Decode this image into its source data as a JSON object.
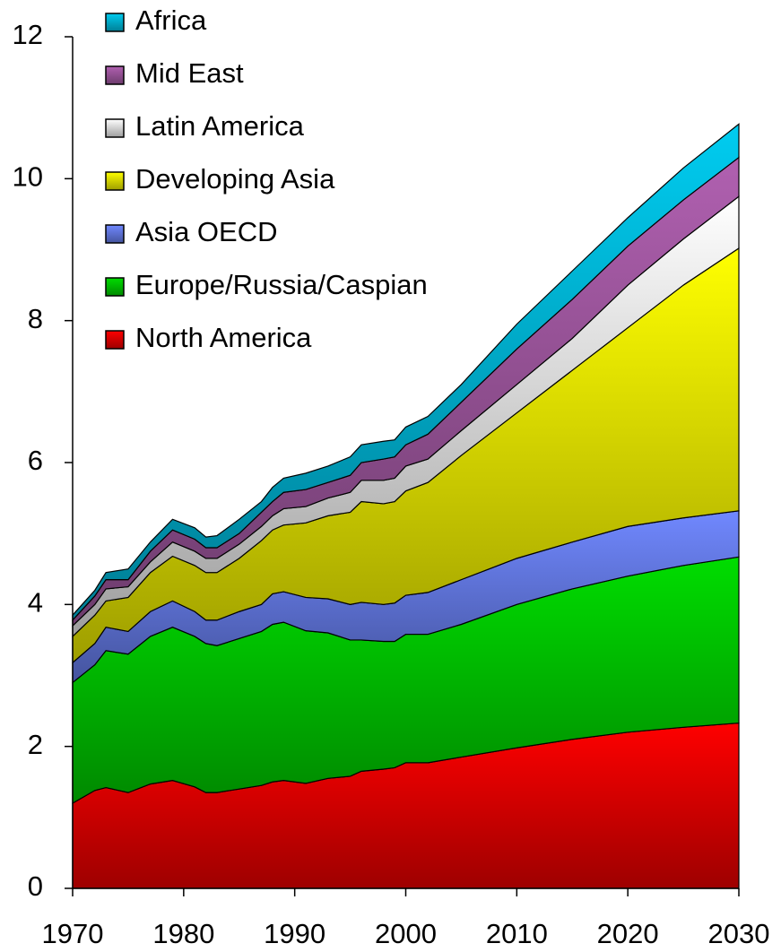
{
  "chart_data": {
    "type": "stacked-area",
    "x": [
      1970,
      1972,
      1973,
      1975,
      1977,
      1979,
      1981,
      1982,
      1983,
      1985,
      1987,
      1988,
      1989,
      1991,
      1993,
      1995,
      1996,
      1998,
      1999,
      2000,
      2002,
      2005,
      2010,
      2015,
      2020,
      2025,
      2030
    ],
    "series": [
      {
        "name": "North America",
        "color": "#ff0000",
        "values": [
          1.2,
          1.38,
          1.42,
          1.35,
          1.47,
          1.52,
          1.43,
          1.35,
          1.35,
          1.4,
          1.45,
          1.5,
          1.52,
          1.48,
          1.55,
          1.58,
          1.65,
          1.68,
          1.7,
          1.77,
          1.77,
          1.85,
          1.98,
          2.1,
          2.2,
          2.27,
          2.33
        ]
      },
      {
        "name": "Europe/Russia/Caspian",
        "color": "#00dd00",
        "values": [
          1.7,
          1.77,
          1.93,
          1.95,
          2.08,
          2.16,
          2.12,
          2.1,
          2.07,
          2.12,
          2.17,
          2.22,
          2.23,
          2.15,
          2.05,
          1.92,
          1.85,
          1.8,
          1.78,
          1.81,
          1.81,
          1.87,
          2.02,
          2.12,
          2.2,
          2.28,
          2.34
        ]
      },
      {
        "name": "Asia OECD",
        "color": "#7088ff",
        "values": [
          0.28,
          0.3,
          0.33,
          0.32,
          0.35,
          0.37,
          0.35,
          0.33,
          0.36,
          0.38,
          0.38,
          0.43,
          0.43,
          0.47,
          0.48,
          0.5,
          0.53,
          0.52,
          0.54,
          0.55,
          0.59,
          0.63,
          0.65,
          0.66,
          0.7,
          0.67,
          0.65
        ]
      },
      {
        "name": "Developing Asia",
        "color": "#ffff00",
        "values": [
          0.37,
          0.4,
          0.37,
          0.48,
          0.55,
          0.63,
          0.65,
          0.67,
          0.67,
          0.75,
          0.9,
          0.9,
          0.94,
          1.05,
          1.17,
          1.3,
          1.42,
          1.42,
          1.43,
          1.47,
          1.55,
          1.75,
          2.05,
          2.42,
          2.8,
          3.28,
          3.7
        ]
      },
      {
        "name": "Latin America",
        "color": "#ffffff",
        "values": [
          0.15,
          0.15,
          0.17,
          0.15,
          0.15,
          0.2,
          0.2,
          0.2,
          0.2,
          0.2,
          0.2,
          0.2,
          0.23,
          0.23,
          0.25,
          0.28,
          0.3,
          0.33,
          0.33,
          0.35,
          0.33,
          0.35,
          0.4,
          0.45,
          0.6,
          0.65,
          0.73
        ]
      },
      {
        "name": "Mid East",
        "color": "#b060b0",
        "values": [
          0.08,
          0.12,
          0.13,
          0.1,
          0.15,
          0.17,
          0.17,
          0.15,
          0.15,
          0.15,
          0.2,
          0.2,
          0.23,
          0.24,
          0.22,
          0.24,
          0.25,
          0.3,
          0.3,
          0.3,
          0.35,
          0.4,
          0.5,
          0.55,
          0.55,
          0.55,
          0.55
        ]
      },
      {
        "name": "Africa",
        "color": "#00ccf0",
        "values": [
          0.07,
          0.08,
          0.1,
          0.15,
          0.13,
          0.15,
          0.16,
          0.15,
          0.17,
          0.2,
          0.15,
          0.2,
          0.2,
          0.23,
          0.23,
          0.26,
          0.25,
          0.25,
          0.24,
          0.25,
          0.25,
          0.25,
          0.35,
          0.4,
          0.4,
          0.45,
          0.47
        ]
      }
    ],
    "xlim": [
      1970,
      2030
    ],
    "xticks": [
      1970,
      1980,
      1990,
      2000,
      2010,
      2020,
      2030
    ],
    "ylim": [
      0,
      12
    ],
    "yticks": [
      0,
      2,
      4,
      6,
      8,
      10,
      12
    ]
  }
}
